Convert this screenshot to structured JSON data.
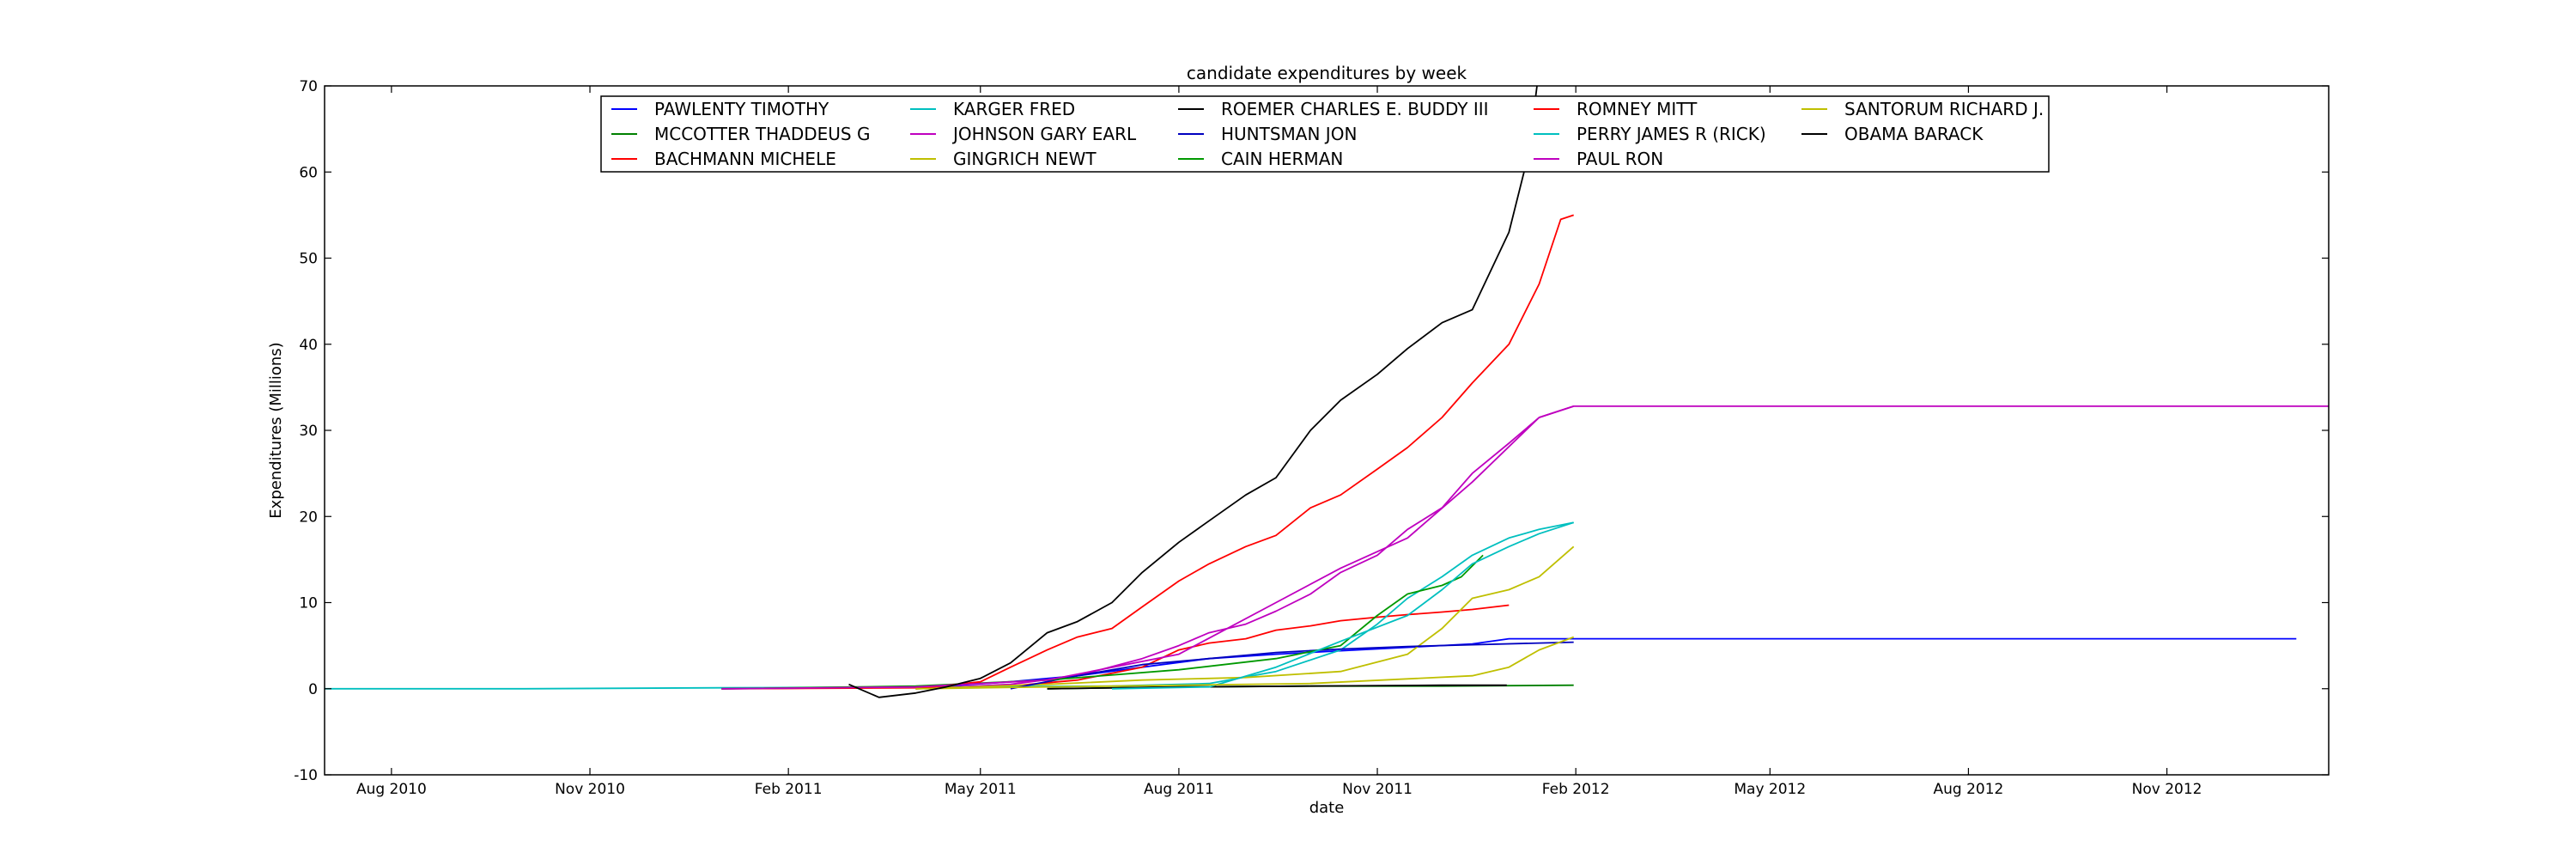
{
  "chart_data": {
    "type": "line",
    "title": "candidate expenditures by week",
    "xlabel": "date",
    "ylabel": "Expenditures (Millions)",
    "x_axis_type": "date",
    "xlim": [
      "2010-07-01",
      "2013-01-15"
    ],
    "ylim": [
      -10,
      70
    ],
    "yticks": [
      -10,
      0,
      10,
      20,
      30,
      40,
      50,
      60,
      70
    ],
    "xticks": [
      {
        "date": "2010-08-01",
        "label": "Aug 2010"
      },
      {
        "date": "2010-11-01",
        "label": "Nov 2010"
      },
      {
        "date": "2011-02-01",
        "label": "Feb 2011"
      },
      {
        "date": "2011-05-01",
        "label": "May 2011"
      },
      {
        "date": "2011-08-01",
        "label": "Aug 2011"
      },
      {
        "date": "2011-11-01",
        "label": "Nov 2011"
      },
      {
        "date": "2012-02-01",
        "label": "Feb 2012"
      },
      {
        "date": "2012-05-01",
        "label": "May 2012"
      },
      {
        "date": "2012-08-01",
        "label": "Aug 2012"
      },
      {
        "date": "2012-11-01",
        "label": "Nov 2012"
      }
    ],
    "grid": false,
    "legend_position": "top-center",
    "legend_columns": 5,
    "series": [
      {
        "name": "PAWLENTY TIMOTHY",
        "color": "#0000ff",
        "points": [
          [
            "2011-01-01",
            0
          ],
          [
            "2011-03-01",
            0.1
          ],
          [
            "2011-04-15",
            0.3
          ],
          [
            "2011-05-15",
            0.8
          ],
          [
            "2011-06-15",
            1.5
          ],
          [
            "2011-07-15",
            2.5
          ],
          [
            "2011-08-15",
            3.5
          ],
          [
            "2011-09-15",
            4.0
          ],
          [
            "2011-10-15",
            4.4
          ],
          [
            "2011-11-15",
            4.8
          ],
          [
            "2011-12-15",
            5.2
          ],
          [
            "2012-01-01",
            5.8
          ],
          [
            "2012-02-01",
            5.8
          ],
          [
            "2012-06-01",
            5.8
          ],
          [
            "2012-12-31",
            5.8
          ]
        ]
      },
      {
        "name": "MCCOTTER THADDEUS G",
        "color": "#008000",
        "points": [
          [
            "2011-06-01",
            0
          ],
          [
            "2011-08-01",
            0.2
          ],
          [
            "2011-10-01",
            0.3
          ],
          [
            "2011-12-01",
            0.3
          ],
          [
            "2012-01-31",
            0.4
          ]
        ]
      },
      {
        "name": "BACHMANN MICHELE",
        "color": "#ff0000",
        "points": [
          [
            "2011-01-01",
            0
          ],
          [
            "2011-04-01",
            0.1
          ],
          [
            "2011-05-15",
            0.3
          ],
          [
            "2011-06-15",
            1.0
          ],
          [
            "2011-07-15",
            2.5
          ],
          [
            "2011-08-01",
            4.5
          ],
          [
            "2011-08-15",
            5.3
          ],
          [
            "2011-09-01",
            5.8
          ],
          [
            "2011-09-15",
            6.8
          ],
          [
            "2011-10-01",
            7.3
          ],
          [
            "2011-10-15",
            7.9
          ],
          [
            "2011-11-01",
            8.3
          ],
          [
            "2011-11-15",
            8.6
          ],
          [
            "2011-12-01",
            8.9
          ],
          [
            "2011-12-15",
            9.2
          ],
          [
            "2012-01-01",
            9.7
          ]
        ]
      },
      {
        "name": "KARGER FRED",
        "color": "#00bfbf",
        "points": [
          [
            "2010-07-01",
            0
          ],
          [
            "2010-10-01",
            0
          ],
          [
            "2011-01-01",
            0.1
          ],
          [
            "2011-04-01",
            0.2
          ],
          [
            "2011-07-01",
            0.3
          ],
          [
            "2011-08-15",
            0.6
          ],
          [
            "2011-09-15",
            2.0
          ],
          [
            "2011-10-15",
            4.5
          ],
          [
            "2011-11-01",
            7.5
          ],
          [
            "2011-11-15",
            10.5
          ],
          [
            "2011-12-01",
            13.0
          ],
          [
            "2011-12-15",
            15.5
          ],
          [
            "2012-01-01",
            17.5
          ],
          [
            "2012-01-15",
            18.5
          ],
          [
            "2012-01-31",
            19.3
          ]
        ]
      },
      {
        "name": "JOHNSON GARY EARL",
        "color": "#bf00bf",
        "points": [
          [
            "2011-04-01",
            0
          ],
          [
            "2011-05-15",
            0.5
          ],
          [
            "2011-06-15",
            1.5
          ],
          [
            "2011-07-15",
            3.5
          ],
          [
            "2011-08-01",
            5.0
          ],
          [
            "2011-08-15",
            6.5
          ],
          [
            "2011-09-01",
            7.5
          ],
          [
            "2011-09-15",
            9.0
          ],
          [
            "2011-10-01",
            11.0
          ],
          [
            "2011-10-15",
            13.5
          ],
          [
            "2011-11-01",
            15.5
          ],
          [
            "2011-11-15",
            18.5
          ],
          [
            "2011-12-01",
            21.0
          ],
          [
            "2011-12-15",
            25.0
          ],
          [
            "2012-01-01",
            28.5
          ],
          [
            "2012-01-15",
            31.5
          ],
          [
            "2012-01-31",
            32.8
          ],
          [
            "2012-06-01",
            32.8
          ],
          [
            "2013-01-15",
            32.8
          ]
        ]
      },
      {
        "name": "GINGRICH NEWT",
        "color": "#bfbf00",
        "points": [
          [
            "2011-04-01",
            0
          ],
          [
            "2011-06-01",
            0.5
          ],
          [
            "2011-07-15",
            1.0
          ],
          [
            "2011-09-01",
            1.3
          ],
          [
            "2011-10-15",
            2.0
          ],
          [
            "2011-11-15",
            4.0
          ],
          [
            "2011-12-01",
            7.0
          ],
          [
            "2011-12-15",
            10.5
          ],
          [
            "2012-01-01",
            11.5
          ],
          [
            "2012-01-15",
            13.0
          ],
          [
            "2012-01-31",
            16.5
          ]
        ]
      },
      {
        "name": "ROEMER CHARLES E. BUDDY III",
        "color": "#000000",
        "points": [
          [
            "2011-06-01",
            0
          ],
          [
            "2011-08-01",
            0.2
          ],
          [
            "2011-10-01",
            0.3
          ],
          [
            "2011-12-01",
            0.4
          ],
          [
            "2011-12-31",
            0.4
          ]
        ]
      },
      {
        "name": "HUNTSMAN JON",
        "color": "#0000bf",
        "points": [
          [
            "2011-05-15",
            0
          ],
          [
            "2011-06-15",
            1.5
          ],
          [
            "2011-07-15",
            2.8
          ],
          [
            "2011-08-15",
            3.5
          ],
          [
            "2011-09-15",
            4.2
          ],
          [
            "2011-10-15",
            4.6
          ],
          [
            "2011-11-15",
            4.9
          ],
          [
            "2011-12-15",
            5.1
          ],
          [
            "2012-01-15",
            5.3
          ],
          [
            "2012-01-31",
            5.4
          ]
        ]
      },
      {
        "name": "CAIN HERMAN",
        "color": "#009900",
        "points": [
          [
            "2011-01-01",
            0
          ],
          [
            "2011-04-01",
            0.3
          ],
          [
            "2011-06-01",
            1.0
          ],
          [
            "2011-08-01",
            2.2
          ],
          [
            "2011-09-15",
            3.5
          ],
          [
            "2011-10-15",
            5.0
          ],
          [
            "2011-11-01",
            8.5
          ],
          [
            "2011-11-15",
            11.0
          ],
          [
            "2011-12-01",
            12.0
          ],
          [
            "2011-12-10",
            13.0
          ],
          [
            "2011-12-20",
            15.5
          ]
        ]
      },
      {
        "name": "ROMNEY MITT",
        "color": "#ff0000",
        "points": [
          [
            "2011-04-01",
            0
          ],
          [
            "2011-05-01",
            0.8
          ],
          [
            "2011-05-15",
            2.5
          ],
          [
            "2011-06-01",
            4.5
          ],
          [
            "2011-06-15",
            6.0
          ],
          [
            "2011-07-01",
            7.0
          ],
          [
            "2011-07-15",
            9.5
          ],
          [
            "2011-08-01",
            12.5
          ],
          [
            "2011-08-15",
            14.5
          ],
          [
            "2011-09-01",
            16.5
          ],
          [
            "2011-09-15",
            17.8
          ],
          [
            "2011-10-01",
            21.0
          ],
          [
            "2011-10-15",
            22.5
          ],
          [
            "2011-11-01",
            25.5
          ],
          [
            "2011-11-15",
            28.0
          ],
          [
            "2011-12-01",
            31.5
          ],
          [
            "2011-12-15",
            35.5
          ],
          [
            "2012-01-01",
            40.0
          ],
          [
            "2012-01-15",
            47.0
          ],
          [
            "2012-01-25",
            54.5
          ],
          [
            "2012-01-31",
            55.0
          ]
        ]
      },
      {
        "name": "PERRY JAMES R (RICK)",
        "color": "#00bfbf",
        "points": [
          [
            "2011-07-01",
            0
          ],
          [
            "2011-08-15",
            0.2
          ],
          [
            "2011-09-15",
            2.5
          ],
          [
            "2011-10-15",
            5.5
          ],
          [
            "2011-11-15",
            8.5
          ],
          [
            "2011-12-01",
            11.5
          ],
          [
            "2011-12-15",
            14.5
          ],
          [
            "2012-01-01",
            16.5
          ],
          [
            "2012-01-15",
            18.0
          ],
          [
            "2012-01-31",
            19.3
          ]
        ]
      },
      {
        "name": "PAUL RON",
        "color": "#bf00bf",
        "points": [
          [
            "2011-01-01",
            0
          ],
          [
            "2011-04-01",
            0.2
          ],
          [
            "2011-06-01",
            1.0
          ],
          [
            "2011-08-01",
            4.0
          ],
          [
            "2011-09-15",
            10.0
          ],
          [
            "2011-10-15",
            14.0
          ],
          [
            "2011-11-15",
            17.5
          ],
          [
            "2011-12-15",
            24.0
          ],
          [
            "2012-01-15",
            31.5
          ],
          [
            "2012-01-31",
            32.8
          ]
        ]
      },
      {
        "name": "SANTORUM RICHARD J.",
        "color": "#bfbf00",
        "points": [
          [
            "2011-04-01",
            0
          ],
          [
            "2011-07-01",
            0.3
          ],
          [
            "2011-10-01",
            0.6
          ],
          [
            "2011-12-15",
            1.5
          ],
          [
            "2012-01-01",
            2.5
          ],
          [
            "2012-01-15",
            4.5
          ],
          [
            "2012-01-31",
            6.0
          ]
        ]
      },
      {
        "name": "OBAMA BARACK",
        "color": "#000000",
        "points": [
          [
            "2011-03-01",
            0.5
          ],
          [
            "2011-03-15",
            -1.0
          ],
          [
            "2011-04-01",
            -0.5
          ],
          [
            "2011-04-15",
            0.2
          ],
          [
            "2011-05-01",
            1.2
          ],
          [
            "2011-05-15",
            3.0
          ],
          [
            "2011-06-01",
            6.5
          ],
          [
            "2011-06-15",
            7.8
          ],
          [
            "2011-07-01",
            10.0
          ],
          [
            "2011-07-15",
            13.5
          ],
          [
            "2011-08-01",
            17.0
          ],
          [
            "2011-08-15",
            19.5
          ],
          [
            "2011-09-01",
            22.5
          ],
          [
            "2011-09-15",
            24.5
          ],
          [
            "2011-10-01",
            30.0
          ],
          [
            "2011-10-15",
            33.5
          ],
          [
            "2011-11-01",
            36.5
          ],
          [
            "2011-11-15",
            39.5
          ],
          [
            "2011-12-01",
            42.5
          ],
          [
            "2011-12-15",
            44.0
          ],
          [
            "2012-01-01",
            53.0
          ],
          [
            "2012-01-10",
            62.0
          ],
          [
            "2012-01-15",
            72.0
          ]
        ]
      }
    ]
  }
}
